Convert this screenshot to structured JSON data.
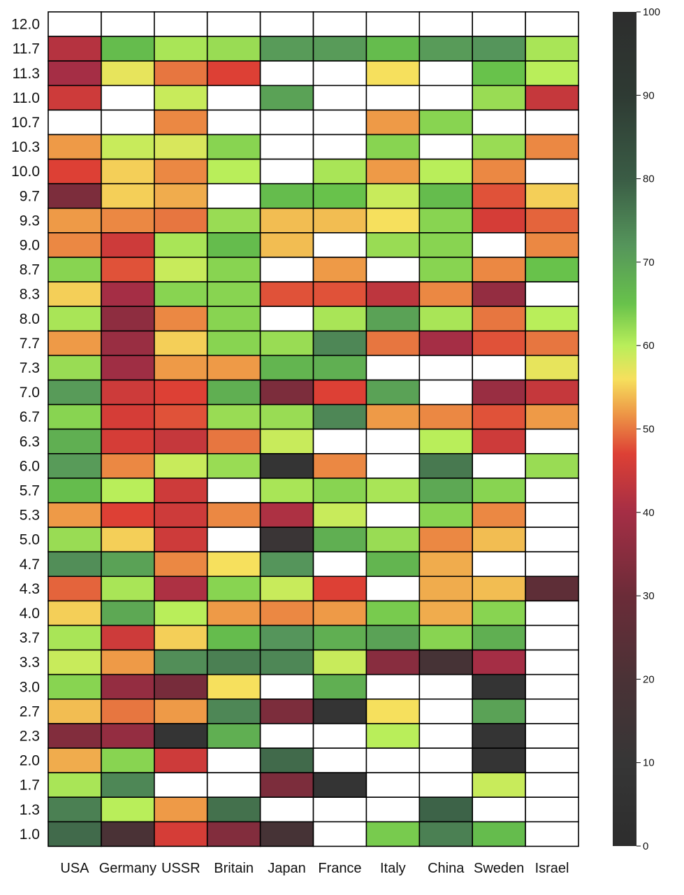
{
  "chart_data": {
    "type": "heatmap",
    "title": "",
    "xlabel": "",
    "ylabel": "",
    "columns": [
      "USA",
      "Germany",
      "USSR",
      "Britain",
      "Japan",
      "France",
      "Italy",
      "China",
      "Sweden",
      "Israel"
    ],
    "rows": [
      "12.0",
      "11.7",
      "11.3",
      "11.0",
      "10.7",
      "10.3",
      "10.0",
      "9.7",
      "9.3",
      "9.0",
      "8.7",
      "8.3",
      "8.0",
      "7.7",
      "7.3",
      "7.0",
      "6.7",
      "6.3",
      "6.0",
      "5.7",
      "5.3",
      "5.0",
      "4.7",
      "4.3",
      "4.0",
      "3.7",
      "3.3",
      "3.0",
      "2.7",
      "2.3",
      "2.0",
      "1.7",
      "1.3",
      "1.0"
    ],
    "values": [
      [
        null,
        null,
        null,
        null,
        null,
        null,
        null,
        null,
        null,
        null
      ],
      [
        42,
        66,
        61,
        62,
        71,
        71,
        66,
        71,
        72,
        61
      ],
      [
        40,
        57,
        50,
        47,
        null,
        null,
        56,
        null,
        65,
        60
      ],
      [
        45,
        null,
        59,
        null,
        70,
        null,
        null,
        null,
        62,
        44
      ],
      [
        null,
        null,
        51,
        null,
        null,
        null,
        52,
        63,
        null,
        null
      ],
      [
        52,
        59,
        58,
        63,
        null,
        null,
        63,
        null,
        62,
        51
      ],
      [
        47,
        55,
        51,
        60,
        null,
        61,
        52,
        60,
        51,
        null
      ],
      [
        33,
        55,
        53,
        null,
        66,
        65,
        59,
        66,
        48,
        55
      ],
      [
        52,
        51,
        50,
        62,
        54,
        54,
        56,
        63,
        46,
        49
      ],
      [
        51,
        45,
        61,
        66,
        54,
        null,
        62,
        63,
        null,
        51
      ],
      [
        63,
        48,
        59,
        63,
        null,
        52,
        null,
        63,
        51,
        65
      ],
      [
        55,
        40,
        63,
        63,
        48,
        48,
        43,
        51,
        37,
        null
      ],
      [
        61,
        36,
        51,
        63,
        null,
        61,
        70,
        61,
        50,
        60
      ],
      [
        52,
        38,
        55,
        63,
        62,
        74,
        50,
        40,
        48,
        50
      ],
      [
        62,
        39,
        52,
        52,
        67,
        68,
        null,
        null,
        null,
        57
      ],
      [
        71,
        45,
        47,
        68,
        33,
        47,
        70,
        null,
        38,
        44
      ],
      [
        63,
        46,
        48,
        62,
        62,
        74,
        52,
        51,
        48,
        52
      ],
      [
        68,
        46,
        44,
        50,
        59,
        null,
        null,
        60,
        45,
        null
      ],
      [
        71,
        51,
        59,
        62,
        8,
        51,
        null,
        76,
        null,
        62
      ],
      [
        66,
        60,
        45,
        null,
        61,
        63,
        61,
        69,
        63,
        null
      ],
      [
        52,
        47,
        45,
        51,
        41,
        59,
        null,
        63,
        51,
        null
      ],
      [
        62,
        55,
        45,
        null,
        12,
        68,
        62,
        51,
        54,
        null
      ],
      [
        73,
        70,
        51,
        56,
        72,
        null,
        67,
        53,
        null,
        null
      ],
      [
        49,
        61,
        41,
        63,
        59,
        47,
        null,
        53,
        54,
        26
      ],
      [
        55,
        69,
        60,
        52,
        51,
        52,
        64,
        53,
        63,
        null
      ],
      [
        61,
        45,
        55,
        66,
        72,
        68,
        70,
        63,
        68,
        null
      ],
      [
        59,
        52,
        73,
        75,
        74,
        59,
        35,
        18,
        40,
        null
      ],
      [
        63,
        37,
        32,
        56,
        null,
        68,
        null,
        null,
        8,
        null
      ],
      [
        54,
        50,
        52,
        74,
        33,
        8,
        56,
        null,
        70,
        null
      ],
      [
        34,
        37,
        8,
        68,
        null,
        null,
        60,
        null,
        8,
        null
      ],
      [
        53,
        63,
        45,
        null,
        78,
        null,
        null,
        null,
        8,
        null
      ],
      [
        61,
        74,
        null,
        null,
        33,
        8,
        null,
        null,
        59,
        null
      ],
      [
        75,
        60,
        52,
        77,
        null,
        null,
        null,
        79,
        null,
        null
      ],
      [
        78,
        20,
        46,
        34,
        18,
        null,
        64,
        75,
        66,
        null
      ]
    ],
    "colorbar": {
      "min": 0,
      "max": 100,
      "ticks": [
        0,
        10,
        20,
        30,
        40,
        50,
        60,
        70,
        80,
        90,
        100
      ],
      "tick_labels": [
        "0",
        "10",
        "20",
        "30",
        "40",
        "50",
        "60",
        "70",
        "80",
        "90",
        "100"
      ],
      "colors": [
        "#2d2d2d",
        "#3a3a3a",
        "#5c2c38",
        "#a22e43",
        "#dd4035",
        "#ee9644",
        "#f6d35a",
        "#f9f25c",
        "#bff05a",
        "#6cc54d",
        "#3e6e4e",
        "#2f2f2f"
      ]
    },
    "missing_color": "#ffffff",
    "grid": true,
    "legend": "colorbar-right"
  }
}
